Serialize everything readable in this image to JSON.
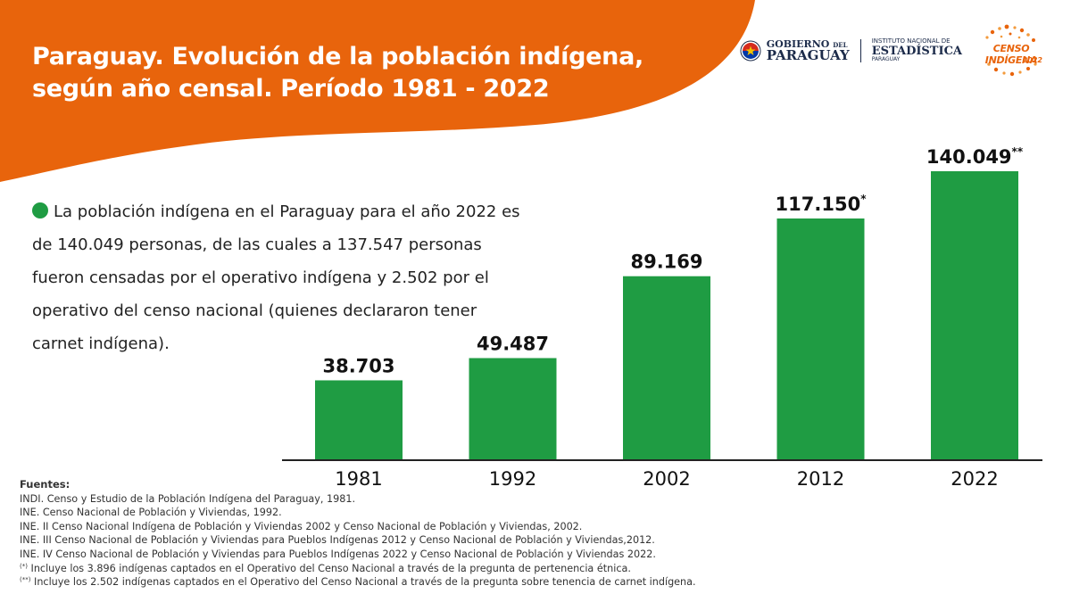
{
  "title": {
    "line1": "Paraguay. Evolución de la población indígena,",
    "line2": "según año censal. Período 1981 - 2022"
  },
  "logos": {
    "gobierno_line1": "GOBIERNO",
    "gobierno_del": "DEL",
    "gobierno_line2": "PARAGUAY",
    "ine_line1": "INSTITUTO NACIONAL DE",
    "ine_line2": "ESTADÍSTICA",
    "ine_line3": "PARAGUAY",
    "censo_name": "CENSO INDÍGENA",
    "censo_year": "2022"
  },
  "description": "La población indígena en el Paraguay para el año 2022 es de 140.049 personas, de las cuales a 137.547 personas fueron censadas por el operativo indígena y 2.502 por el operativo del censo nacional (quienes declararon tener carnet indígena).",
  "chart_data": {
    "type": "bar",
    "categories": [
      "1981",
      "1992",
      "2002",
      "2012",
      "2022"
    ],
    "values": [
      38703,
      49487,
      89169,
      117150,
      140049
    ],
    "value_labels": [
      "38.703",
      "49.487",
      "89.169",
      "117.150",
      "140.049"
    ],
    "label_marks": [
      "",
      "",
      "",
      "*",
      "**"
    ],
    "bar_color": "#1f9c43",
    "grid": false,
    "title": "",
    "xlabel": "",
    "ylabel": ""
  },
  "sources": {
    "title": "Fuentes:",
    "lines": [
      "INDI. Censo y Estudio de la Población Indígena del Paraguay, 1981.",
      "INE. Censo Nacional de Población y Viviendas, 1992.",
      "INE. II Censo Nacional Indígena de Población y Viviendas 2002 y Censo Nacional de Población y Viviendas, 2002.",
      "INE. III Censo Nacional de Población y Viviendas para Pueblos Indígenas 2012 y Censo Nacional de Población y Viviendas,2012.",
      "INE. IV Censo Nacional de Población y Viviendas para Pueblos Indígenas 2022 y Censo Nacional de Población y Viviendas 2022."
    ],
    "note1_mark": "(*)",
    "note1": "Incluye los 3.896 indígenas captados en el Operativo del Censo Nacional a través de la pregunta de pertenencia étnica.",
    "note2_mark": "(**)",
    "note2": "Incluye los 2.502 indígenas captados en el Operativo del Censo Nacional a través de la pregunta sobre tenencia de carnet indígena."
  },
  "colors": {
    "orange": "#e8640c",
    "green": "#1f9c43",
    "navy": "#1c2b4a"
  }
}
